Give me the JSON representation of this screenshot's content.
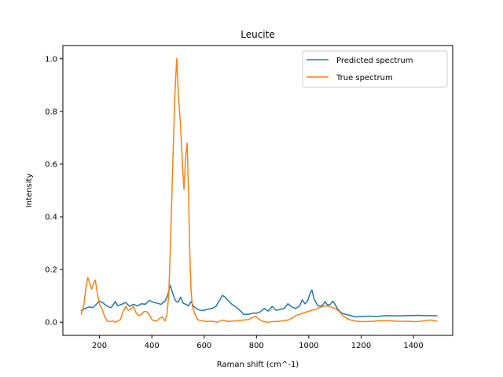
{
  "chart_data": {
    "type": "line",
    "title": "Leucite",
    "xlabel": "Raman shift (cm^-1)",
    "ylabel": "Intensity",
    "xlim": [
      60,
      1550
    ],
    "ylim": [
      -0.05,
      1.05
    ],
    "xticks": [
      200,
      400,
      600,
      800,
      1000,
      1200,
      1400
    ],
    "yticks": [
      0.0,
      0.2,
      0.4,
      0.6,
      0.8,
      1.0
    ],
    "xtick_labels": [
      "200",
      "400",
      "600",
      "800",
      "1000",
      "1200",
      "1400"
    ],
    "ytick_labels": [
      "0.0",
      "0.2",
      "0.4",
      "0.6",
      "0.8",
      "1.0"
    ],
    "grid": false,
    "legend_position": "top-right",
    "series": [
      {
        "name": "Predicted spectrum",
        "color": "#1f77b4",
        "points": [
          [
            130,
            0.045
          ],
          [
            145,
            0.052
          ],
          [
            160,
            0.058
          ],
          [
            175,
            0.055
          ],
          [
            190,
            0.07
          ],
          [
            200,
            0.08
          ],
          [
            215,
            0.072
          ],
          [
            230,
            0.06
          ],
          [
            245,
            0.055
          ],
          [
            260,
            0.078
          ],
          [
            270,
            0.062
          ],
          [
            285,
            0.068
          ],
          [
            300,
            0.075
          ],
          [
            315,
            0.06
          ],
          [
            330,
            0.068
          ],
          [
            345,
            0.062
          ],
          [
            360,
            0.07
          ],
          [
            375,
            0.068
          ],
          [
            390,
            0.082
          ],
          [
            405,
            0.076
          ],
          [
            420,
            0.072
          ],
          [
            435,
            0.068
          ],
          [
            450,
            0.08
          ],
          [
            460,
            0.1
          ],
          [
            470,
            0.14
          ],
          [
            480,
            0.11
          ],
          [
            490,
            0.082
          ],
          [
            500,
            0.075
          ],
          [
            510,
            0.095
          ],
          [
            520,
            0.072
          ],
          [
            530,
            0.068
          ],
          [
            540,
            0.062
          ],
          [
            550,
            0.078
          ],
          [
            560,
            0.06
          ],
          [
            570,
            0.052
          ],
          [
            585,
            0.045
          ],
          [
            600,
            0.045
          ],
          [
            615,
            0.05
          ],
          [
            630,
            0.052
          ],
          [
            645,
            0.06
          ],
          [
            660,
            0.085
          ],
          [
            670,
            0.102
          ],
          [
            680,
            0.095
          ],
          [
            695,
            0.078
          ],
          [
            710,
            0.065
          ],
          [
            725,
            0.055
          ],
          [
            740,
            0.042
          ],
          [
            750,
            0.03
          ],
          [
            770,
            0.03
          ],
          [
            790,
            0.035
          ],
          [
            800,
            0.034
          ],
          [
            815,
            0.04
          ],
          [
            830,
            0.052
          ],
          [
            845,
            0.042
          ],
          [
            860,
            0.06
          ],
          [
            875,
            0.045
          ],
          [
            890,
            0.048
          ],
          [
            905,
            0.052
          ],
          [
            920,
            0.07
          ],
          [
            935,
            0.058
          ],
          [
            950,
            0.052
          ],
          [
            965,
            0.062
          ],
          [
            975,
            0.085
          ],
          [
            985,
            0.07
          ],
          [
            995,
            0.08
          ],
          [
            1005,
            0.11
          ],
          [
            1012,
            0.122
          ],
          [
            1020,
            0.088
          ],
          [
            1035,
            0.062
          ],
          [
            1050,
            0.06
          ],
          [
            1062,
            0.078
          ],
          [
            1072,
            0.065
          ],
          [
            1082,
            0.068
          ],
          [
            1092,
            0.08
          ],
          [
            1100,
            0.068
          ],
          [
            1110,
            0.05
          ],
          [
            1125,
            0.035
          ],
          [
            1140,
            0.03
          ],
          [
            1160,
            0.025
          ],
          [
            1180,
            0.02
          ],
          [
            1200,
            0.022
          ],
          [
            1230,
            0.023
          ],
          [
            1260,
            0.022
          ],
          [
            1300,
            0.025
          ],
          [
            1340,
            0.024
          ],
          [
            1380,
            0.025
          ],
          [
            1420,
            0.026
          ],
          [
            1450,
            0.025
          ],
          [
            1470,
            0.025
          ],
          [
            1490,
            0.024
          ]
        ]
      },
      {
        "name": "True spectrum",
        "color": "#ff7f0e",
        "points": [
          [
            130,
            0.03
          ],
          [
            140,
            0.065
          ],
          [
            148,
            0.13
          ],
          [
            155,
            0.17
          ],
          [
            162,
            0.15
          ],
          [
            170,
            0.125
          ],
          [
            178,
            0.15
          ],
          [
            184,
            0.16
          ],
          [
            190,
            0.12
          ],
          [
            200,
            0.068
          ],
          [
            210,
            0.05
          ],
          [
            220,
            0.02
          ],
          [
            230,
            0.005
          ],
          [
            240,
            0.002
          ],
          [
            250,
            0.005
          ],
          [
            260,
            0.0
          ],
          [
            270,
            0.005
          ],
          [
            280,
            0.01
          ],
          [
            290,
            0.04
          ],
          [
            300,
            0.06
          ],
          [
            310,
            0.045
          ],
          [
            320,
            0.05
          ],
          [
            330,
            0.06
          ],
          [
            340,
            0.035
          ],
          [
            350,
            0.025
          ],
          [
            360,
            0.03
          ],
          [
            370,
            0.04
          ],
          [
            380,
            0.04
          ],
          [
            390,
            0.03
          ],
          [
            400,
            0.01
          ],
          [
            410,
            0.005
          ],
          [
            420,
            0.005
          ],
          [
            430,
            0.015
          ],
          [
            440,
            0.02
          ],
          [
            450,
            0.005
          ],
          [
            458,
            0.03
          ],
          [
            465,
            0.11
          ],
          [
            472,
            0.32
          ],
          [
            480,
            0.6
          ],
          [
            488,
            0.86
          ],
          [
            495,
            1.0
          ],
          [
            502,
            0.86
          ],
          [
            510,
            0.74
          ],
          [
            518,
            0.58
          ],
          [
            523,
            0.505
          ],
          [
            530,
            0.64
          ],
          [
            535,
            0.68
          ],
          [
            540,
            0.5
          ],
          [
            545,
            0.27
          ],
          [
            550,
            0.12
          ],
          [
            555,
            0.06
          ],
          [
            565,
            0.03
          ],
          [
            575,
            0.01
          ],
          [
            590,
            0.005
          ],
          [
            610,
            0.003
          ],
          [
            630,
            0.004
          ],
          [
            650,
            0.0
          ],
          [
            670,
            0.008
          ],
          [
            690,
            0.003
          ],
          [
            710,
            0.004
          ],
          [
            730,
            0.006
          ],
          [
            750,
            0.008
          ],
          [
            770,
            0.01
          ],
          [
            785,
            0.018
          ],
          [
            795,
            0.022
          ],
          [
            805,
            0.015
          ],
          [
            815,
            0.008
          ],
          [
            825,
            0.003
          ],
          [
            840,
            0.0
          ],
          [
            860,
            0.002
          ],
          [
            880,
            0.003
          ],
          [
            900,
            0.005
          ],
          [
            920,
            0.008
          ],
          [
            935,
            0.015
          ],
          [
            950,
            0.025
          ],
          [
            965,
            0.03
          ],
          [
            980,
            0.035
          ],
          [
            995,
            0.04
          ],
          [
            1010,
            0.045
          ],
          [
            1025,
            0.048
          ],
          [
            1040,
            0.055
          ],
          [
            1055,
            0.06
          ],
          [
            1070,
            0.062
          ],
          [
            1085,
            0.058
          ],
          [
            1100,
            0.052
          ],
          [
            1115,
            0.042
          ],
          [
            1130,
            0.025
          ],
          [
            1145,
            0.015
          ],
          [
            1160,
            0.008
          ],
          [
            1175,
            0.005
          ],
          [
            1190,
            0.003
          ],
          [
            1210,
            0.002
          ],
          [
            1230,
            0.003
          ],
          [
            1250,
            0.004
          ],
          [
            1270,
            0.006
          ],
          [
            1290,
            0.005
          ],
          [
            1310,
            0.006
          ],
          [
            1330,
            0.004
          ],
          [
            1350,
            0.003
          ],
          [
            1370,
            0.004
          ],
          [
            1390,
            0.003
          ],
          [
            1410,
            0.002
          ],
          [
            1430,
            0.004
          ],
          [
            1450,
            0.007
          ],
          [
            1470,
            0.008
          ],
          [
            1480,
            0.005
          ],
          [
            1490,
            0.004
          ]
        ]
      }
    ]
  }
}
